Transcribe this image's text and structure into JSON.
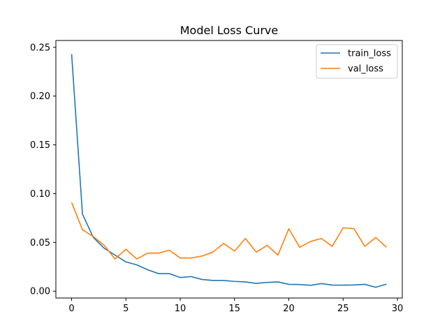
{
  "chart_data": {
    "type": "line",
    "title": "Model Loss Curve",
    "xlabel": "",
    "ylabel": "",
    "xlim": [
      -1.45,
      30.45
    ],
    "ylim": [
      -0.007,
      0.257
    ],
    "xticks": [
      0,
      5,
      10,
      15,
      20,
      25,
      30
    ],
    "xtick_labels": [
      "0",
      "5",
      "10",
      "15",
      "20",
      "25",
      "30"
    ],
    "yticks": [
      0.0,
      0.05,
      0.1,
      0.15,
      0.2,
      0.25
    ],
    "ytick_labels": [
      "0.00",
      "0.05",
      "0.10",
      "0.15",
      "0.20",
      "0.25"
    ],
    "grid": false,
    "legend_position": "top-right",
    "x": [
      0,
      1,
      2,
      3,
      4,
      5,
      6,
      7,
      8,
      9,
      10,
      11,
      12,
      13,
      14,
      15,
      16,
      17,
      18,
      19,
      20,
      21,
      22,
      23,
      24,
      25,
      26,
      27,
      28,
      29
    ],
    "series": [
      {
        "name": "train_loss",
        "color": "#1f77b4",
        "values": [
          0.243,
          0.079,
          0.055,
          0.044,
          0.037,
          0.03,
          0.027,
          0.022,
          0.018,
          0.018,
          0.014,
          0.015,
          0.012,
          0.011,
          0.011,
          0.01,
          0.0095,
          0.008,
          0.009,
          0.0095,
          0.007,
          0.0068,
          0.006,
          0.0078,
          0.0063,
          0.0062,
          0.0064,
          0.007,
          0.004,
          0.0072
        ]
      },
      {
        "name": "val_loss",
        "color": "#ff7f0e",
        "values": [
          0.091,
          0.063,
          0.056,
          0.047,
          0.033,
          0.043,
          0.033,
          0.039,
          0.039,
          0.042,
          0.034,
          0.034,
          0.036,
          0.04,
          0.049,
          0.041,
          0.054,
          0.04,
          0.047,
          0.037,
          0.064,
          0.045,
          0.051,
          0.054,
          0.046,
          0.065,
          0.064,
          0.046,
          0.055,
          0.045
        ]
      }
    ]
  }
}
